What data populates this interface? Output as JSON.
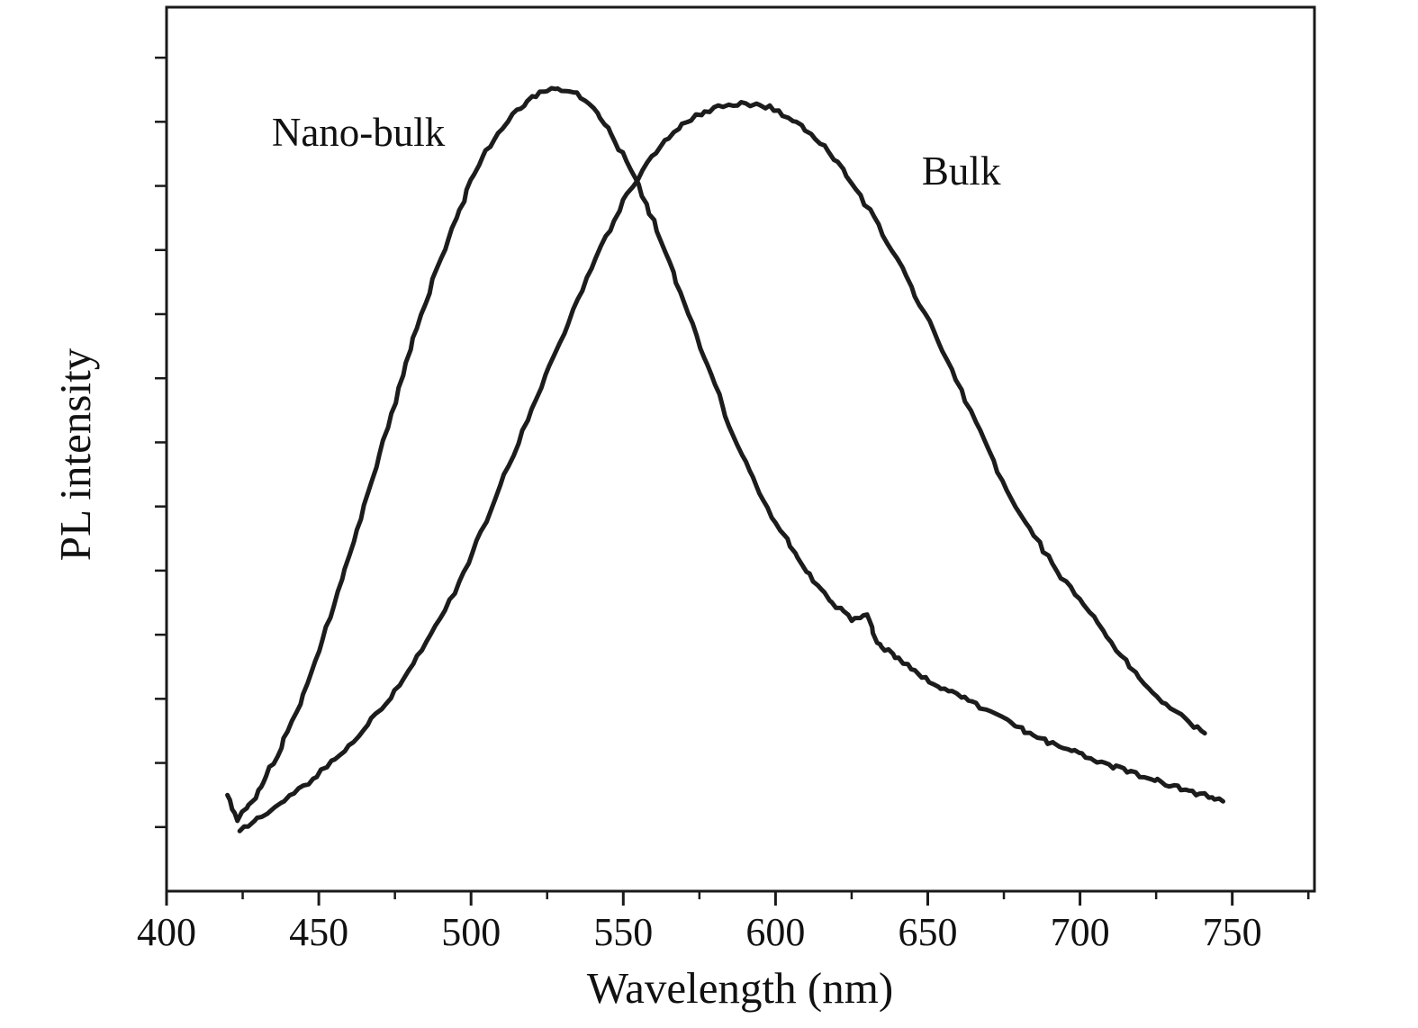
{
  "chart_data": {
    "type": "line",
    "title": "",
    "xlabel": "Wavelength (nm)",
    "ylabel": "PL intensity",
    "x_unit": "nm",
    "xlim": [
      400,
      777
    ],
    "ylim": [
      0,
      1.103
    ],
    "grid": false,
    "legend_position": "inline-annotations",
    "background": "#ffffff",
    "line_color": "#1c1c1c",
    "x_major_ticks": [
      400,
      450,
      500,
      550,
      600,
      650,
      700,
      750
    ],
    "x_tick_labels": [
      "400",
      "450",
      "500",
      "550",
      "600",
      "650",
      "700",
      "750"
    ],
    "x_minor_ticks": [
      425,
      475,
      525,
      575,
      625,
      675,
      725,
      775
    ],
    "y_minor_ticks": [
      0.08,
      0.16,
      0.24,
      0.32,
      0.4,
      0.48,
      0.56,
      0.64,
      0.72,
      0.8,
      0.88,
      0.96,
      1.04
    ],
    "y_tick_labels": [],
    "series": [
      {
        "name": "Nano-bulk",
        "peak_nm": 530,
        "x": [
          420,
          423,
          427,
          431,
          435,
          440,
          445,
          450,
          455,
          460,
          465,
          470,
          475,
          480,
          485,
          490,
          495,
          500,
          505,
          510,
          515,
          520,
          525,
          530,
          535,
          540,
          545,
          550,
          555,
          560,
          565,
          570,
          575,
          580,
          585,
          590,
          595,
          600,
          605,
          610,
          615,
          620,
          625,
          630,
          633,
          637,
          642,
          647,
          652,
          657,
          662,
          667,
          672,
          677,
          682,
          687,
          692,
          697,
          702,
          707,
          712,
          717,
          722,
          727,
          732,
          737,
          742,
          747
        ],
        "y": [
          0.12,
          0.09,
          0.105,
          0.13,
          0.16,
          0.2,
          0.245,
          0.3,
          0.355,
          0.42,
          0.48,
          0.545,
          0.61,
          0.675,
          0.735,
          0.79,
          0.84,
          0.885,
          0.925,
          0.95,
          0.975,
          0.99,
          1.0,
          1.0,
          0.995,
          0.975,
          0.95,
          0.92,
          0.88,
          0.835,
          0.785,
          0.735,
          0.68,
          0.63,
          0.58,
          0.535,
          0.495,
          0.46,
          0.43,
          0.4,
          0.375,
          0.355,
          0.34,
          0.347,
          0.312,
          0.3,
          0.285,
          0.27,
          0.26,
          0.25,
          0.24,
          0.23,
          0.22,
          0.21,
          0.2,
          0.19,
          0.183,
          0.176,
          0.168,
          0.161,
          0.154,
          0.148,
          0.142,
          0.136,
          0.13,
          0.124,
          0.118,
          0.112
        ]
      },
      {
        "name": "Bulk",
        "peak_nm": 589,
        "x": [
          424,
          430,
          436,
          442,
          448,
          454,
          460,
          466,
          472,
          478,
          484,
          490,
          496,
          502,
          508,
          514,
          520,
          526,
          532,
          538,
          544,
          550,
          556,
          562,
          568,
          574,
          580,
          586,
          592,
          598,
          604,
          610,
          616,
          622,
          628,
          634,
          640,
          646,
          652,
          658,
          664,
          670,
          676,
          682,
          688,
          694,
          700,
          706,
          712,
          718,
          724,
          730,
          736,
          741
        ],
        "y": [
          0.075,
          0.09,
          0.105,
          0.122,
          0.14,
          0.16,
          0.182,
          0.207,
          0.235,
          0.265,
          0.3,
          0.34,
          0.385,
          0.435,
          0.49,
          0.545,
          0.6,
          0.655,
          0.71,
          0.765,
          0.815,
          0.86,
          0.9,
          0.93,
          0.952,
          0.967,
          0.977,
          0.982,
          0.982,
          0.978,
          0.967,
          0.951,
          0.929,
          0.901,
          0.867,
          0.83,
          0.79,
          0.745,
          0.7,
          0.65,
          0.6,
          0.55,
          0.5,
          0.462,
          0.425,
          0.393,
          0.365,
          0.335,
          0.302,
          0.272,
          0.246,
          0.226,
          0.21,
          0.197
        ]
      }
    ],
    "annotations": [
      {
        "text": "Nano-bulk",
        "x": 463,
        "y": 0.93
      },
      {
        "text": "Bulk",
        "x": 661,
        "y": 0.882
      }
    ]
  }
}
